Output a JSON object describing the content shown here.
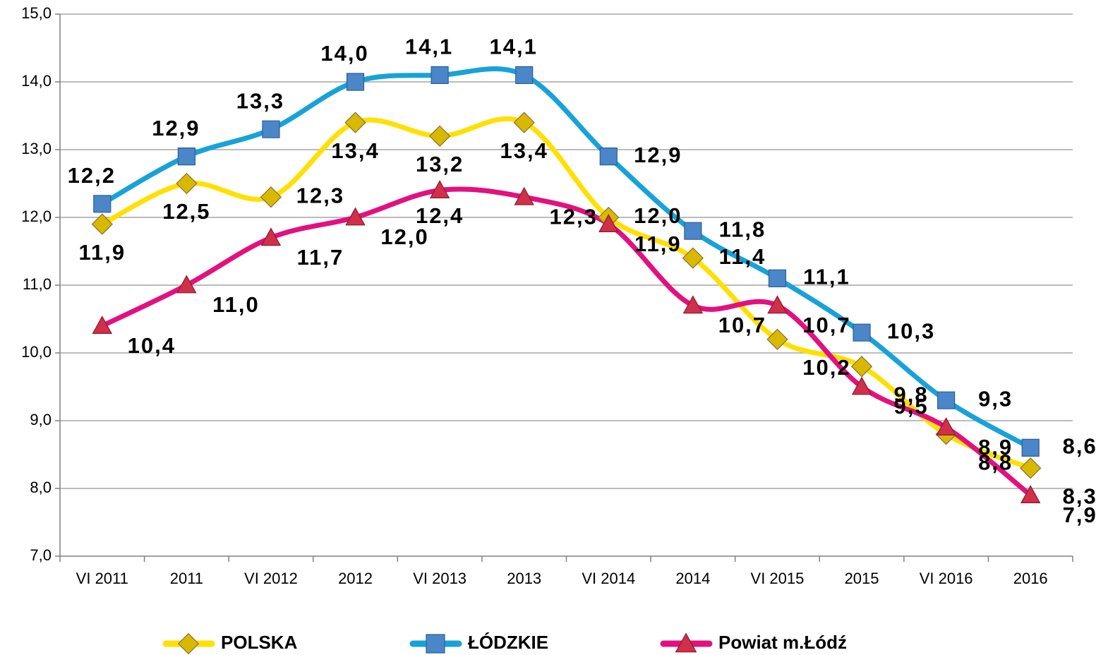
{
  "chart_data": {
    "type": "line",
    "categories": [
      "VI 2011",
      "2011",
      "VI 2012",
      "2012",
      "VI 2013",
      "2013",
      "VI 2014",
      "2014",
      "VI 2015",
      "2015",
      "VI 2016",
      "2016"
    ],
    "series": [
      {
        "name": "POLSKA",
        "color": "#ffe000",
        "marker": "diamond",
        "marker_color": "#d9b800",
        "values": [
          11.9,
          12.5,
          12.3,
          13.4,
          13.2,
          13.4,
          12.0,
          11.4,
          10.2,
          9.8,
          8.8,
          8.3
        ],
        "value_labels": [
          "11,9",
          "12,5",
          "12,3",
          "13,4",
          "13,2",
          "13,4",
          "12,0",
          "11,4",
          "10,2",
          "9,8",
          "8,8",
          "8,3"
        ]
      },
      {
        "name": "ŁÓDZKIE",
        "color": "#17a2d8",
        "marker": "square",
        "marker_color": "#4a86c8",
        "values": [
          12.2,
          12.9,
          13.3,
          14.0,
          14.1,
          14.1,
          12.9,
          11.8,
          11.1,
          10.3,
          9.3,
          8.6
        ],
        "value_labels": [
          "12,2",
          "12,9",
          "13,3",
          "14,0",
          "14,1",
          "14,1",
          "12,9",
          "11,8",
          "11,1",
          "10,3",
          "9,3",
          "8,6"
        ]
      },
      {
        "name": "Powiat m.Łódź",
        "color": "#e2117f",
        "marker": "triangle",
        "marker_color": "#d0304a",
        "values": [
          10.4,
          11.0,
          11.7,
          12.0,
          12.4,
          12.3,
          11.9,
          10.7,
          10.7,
          9.5,
          8.9,
          7.9
        ],
        "value_labels": [
          "10,4",
          "11,0",
          "11,7",
          "12,0",
          "12,4",
          "12,3",
          "11,9",
          "10,7",
          "10,7",
          "9,5",
          "8,9",
          "7,9"
        ]
      }
    ],
    "ylim": [
      7,
      15
    ],
    "yticks": [
      {
        "value": 7,
        "label": "7,0"
      },
      {
        "value": 8,
        "label": "8,0"
      },
      {
        "value": 9,
        "label": "9,0"
      },
      {
        "value": 10,
        "label": "10,0"
      },
      {
        "value": 11,
        "label": "11,0"
      },
      {
        "value": 12,
        "label": "12,0"
      },
      {
        "value": 13,
        "label": "13,0"
      },
      {
        "value": 14,
        "label": "14,0"
      },
      {
        "value": 15,
        "label": "15,0"
      }
    ],
    "grid": true,
    "legend": "bottom"
  }
}
